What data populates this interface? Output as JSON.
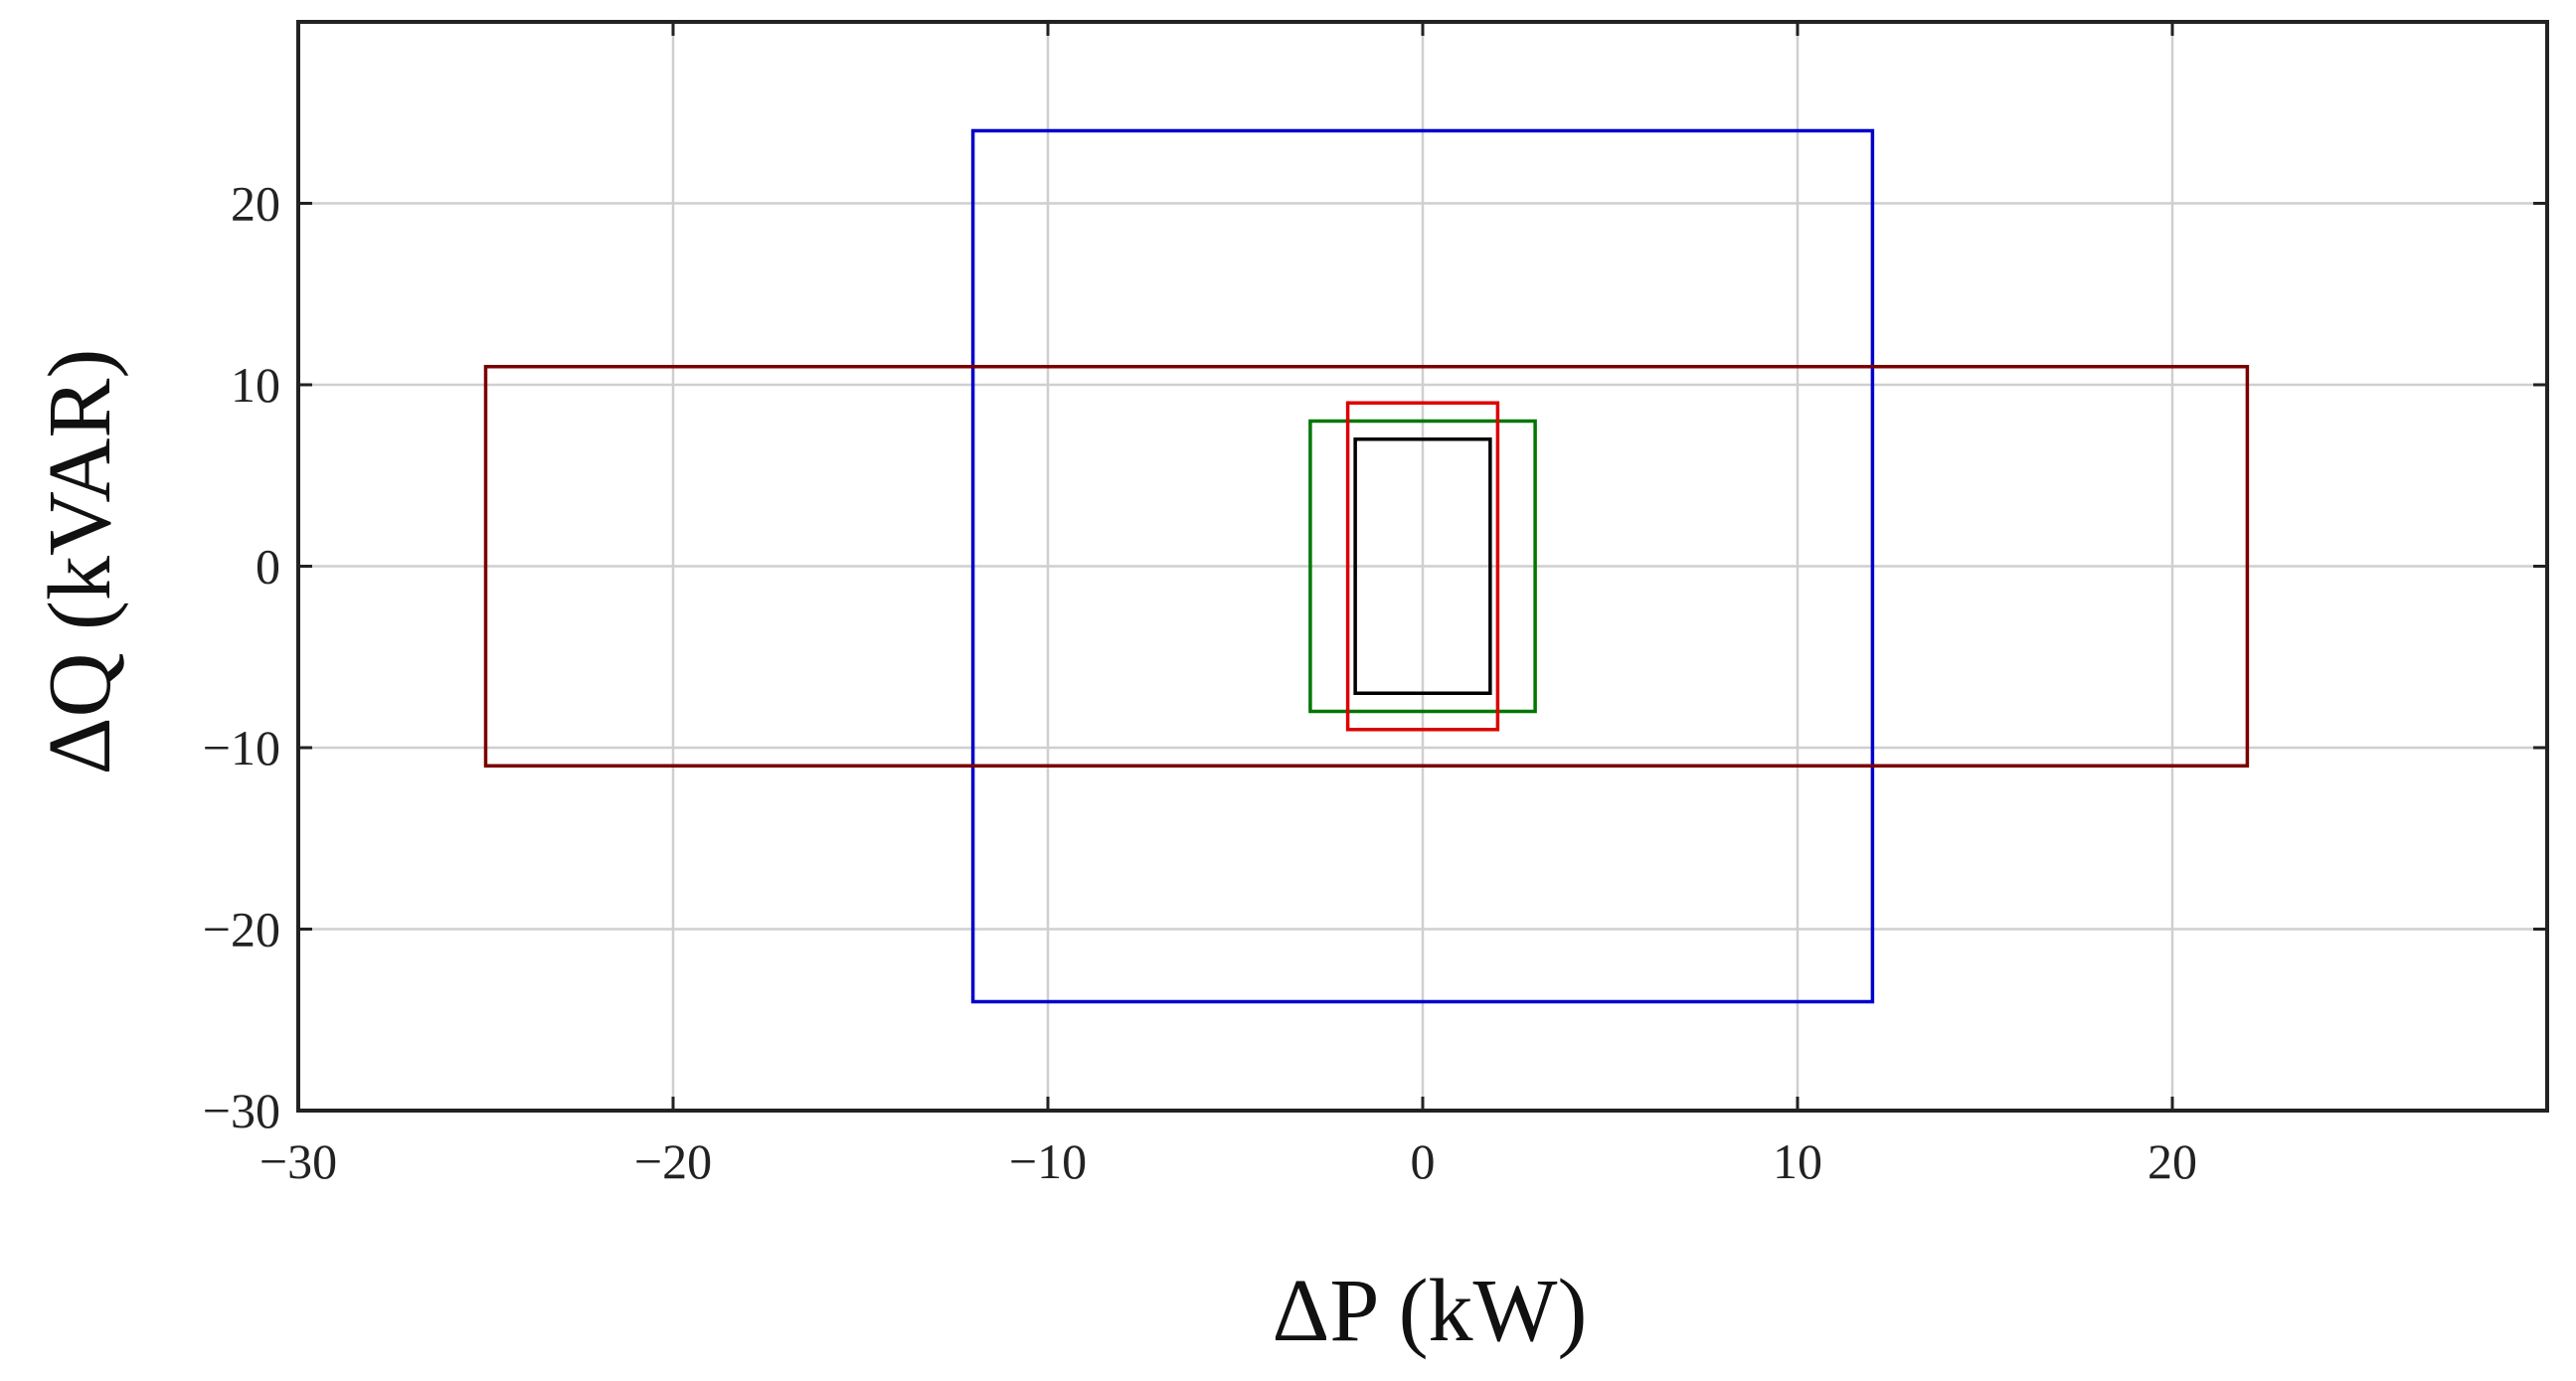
{
  "chart_data": {
    "type": "line",
    "title": "",
    "xlabel": "ΔP (kW)",
    "ylabel": "ΔQ (kVAR)",
    "xlim": [
      -30,
      30
    ],
    "ylim": [
      -30,
      30
    ],
    "xticks": [
      -30,
      -20,
      -10,
      0,
      10,
      20
    ],
    "yticks": [
      -30,
      -20,
      -10,
      0,
      10,
      20
    ],
    "xtick_labels": [
      "−30",
      "−20",
      "−10",
      "0",
      "10",
      "20"
    ],
    "ytick_labels": [
      "−30",
      "−20",
      "−10",
      "0",
      "10",
      "20"
    ],
    "grid": true,
    "legend": "none",
    "series": [
      {
        "color": "#0000cc",
        "p_range": [
          -12,
          12
        ],
        "q_range": [
          -24,
          24
        ]
      },
      {
        "color": "#7a0000",
        "p_range": [
          -25,
          22
        ],
        "q_range": [
          -11,
          11
        ]
      },
      {
        "color": "#007700",
        "p_range": [
          -3,
          3
        ],
        "q_range": [
          -8,
          8
        ]
      },
      {
        "color": "#dd0000",
        "p_range": [
          -2,
          2
        ],
        "q_range": [
          -9,
          9
        ]
      },
      {
        "color": "#000000",
        "p_range": [
          -1.8,
          1.8
        ],
        "q_range": [
          -7,
          7
        ]
      }
    ]
  }
}
